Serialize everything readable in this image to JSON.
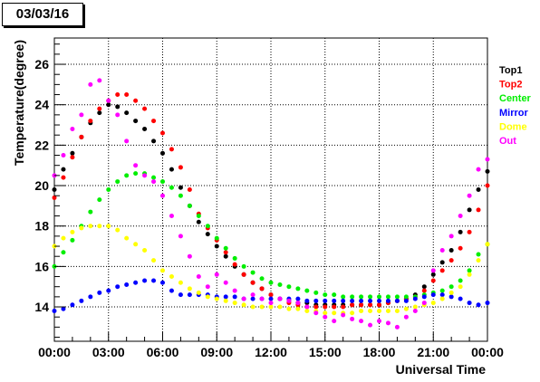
{
  "chart_data": {
    "type": "scatter",
    "title": "03/03/16",
    "xlabel": "Universal Time",
    "ylabel": "Temperature(degree)",
    "xlim": [
      0,
      24
    ],
    "ylim": [
      12.3,
      27.3
    ],
    "x_tick_values": [
      0,
      3,
      6,
      9,
      12,
      15,
      18,
      21,
      24
    ],
    "x_tick_labels": [
      "00:00",
      "03:00",
      "06:00",
      "09:00",
      "12:00",
      "15:00",
      "18:00",
      "21:00",
      "00:00"
    ],
    "y_tick_values": [
      14,
      16,
      18,
      20,
      22,
      24,
      26
    ],
    "y_tick_labels": [
      "14",
      "16",
      "18",
      "20",
      "22",
      "24",
      "26"
    ],
    "grid": true,
    "legend_position": "right",
    "series": [
      {
        "name": "Top1",
        "color": "#000000",
        "x": [
          0,
          0.5,
          1,
          1.5,
          2,
          2.5,
          3,
          3.5,
          4,
          4.5,
          5,
          5.5,
          6,
          6.5,
          7,
          7.5,
          8,
          8.5,
          9,
          9.5,
          10,
          10.5,
          11,
          11.5,
          12,
          12.5,
          13,
          13.5,
          14,
          14.5,
          15,
          15.5,
          16,
          16.5,
          17,
          17.5,
          18,
          18.5,
          19,
          19.5,
          20,
          20.5,
          21,
          21.5,
          22,
          22.5,
          23,
          23.5,
          24
        ],
        "y": [
          19.8,
          20.8,
          21.6,
          22.4,
          23.1,
          23.6,
          24.0,
          23.9,
          23.6,
          23.2,
          22.8,
          22.2,
          21.6,
          20.8,
          19.9,
          19.0,
          18.2,
          17.6,
          17.0,
          16.5,
          16.0,
          15.6,
          15.2,
          14.9,
          14.6,
          14.4,
          14.3,
          14.2,
          14.2,
          14.1,
          14.1,
          14.1,
          14.1,
          14.1,
          14.1,
          14.1,
          14.1,
          14.2,
          14.3,
          14.4,
          14.6,
          15.0,
          15.6,
          16.2,
          16.8,
          17.7,
          18.8,
          19.8,
          20.7
        ]
      },
      {
        "name": "Top2",
        "color": "#ff0000",
        "x": [
          0,
          0.5,
          1,
          1.5,
          2,
          2.5,
          3,
          3.5,
          4,
          4.5,
          5,
          5.5,
          6,
          6.5,
          7,
          7.5,
          8,
          8.5,
          9,
          9.5,
          10,
          10.5,
          11,
          11.5,
          12,
          12.5,
          13,
          13.5,
          14,
          14.5,
          15,
          15.5,
          16,
          16.5,
          17,
          17.5,
          18,
          18.5,
          19,
          19.5,
          20,
          20.5,
          21,
          21.5,
          22,
          22.5,
          23,
          23.5,
          24
        ],
        "y": [
          19.4,
          20.4,
          21.4,
          22.4,
          23.2,
          23.8,
          24.2,
          24.5,
          24.5,
          24.2,
          23.8,
          23.2,
          22.6,
          21.8,
          20.9,
          19.8,
          18.6,
          17.9,
          17.3,
          16.7,
          16.1,
          15.6,
          15.2,
          14.9,
          14.6,
          14.4,
          14.2,
          14.1,
          14.0,
          14.0,
          14.0,
          14.0,
          14.0,
          14.1,
          14.1,
          14.1,
          14.1,
          14.2,
          14.3,
          14.4,
          14.5,
          14.8,
          15.3,
          15.8,
          16.3,
          16.9,
          17.7,
          18.8,
          20.0
        ]
      },
      {
        "name": "Center",
        "color": "#00ee00",
        "x": [
          0,
          0.5,
          1,
          1.5,
          2,
          2.5,
          3,
          3.5,
          4,
          4.5,
          5,
          5.5,
          6,
          6.5,
          7,
          7.5,
          8,
          8.5,
          9,
          9.5,
          10,
          10.5,
          11,
          11.5,
          12,
          12.5,
          13,
          13.5,
          14,
          14.5,
          15,
          15.5,
          16,
          16.5,
          17,
          17.5,
          18,
          18.5,
          19,
          19.5,
          20,
          20.5,
          21,
          21.5,
          22,
          22.5,
          23,
          23.5,
          24
        ],
        "y": [
          16.0,
          16.7,
          17.3,
          18.0,
          18.7,
          19.3,
          19.8,
          20.2,
          20.5,
          20.6,
          20.6,
          20.4,
          20.2,
          19.9,
          19.5,
          19.0,
          18.5,
          18.0,
          17.4,
          16.9,
          16.4,
          16.0,
          15.7,
          15.4,
          15.2,
          15.1,
          15.0,
          14.9,
          14.8,
          14.7,
          14.6,
          14.6,
          14.5,
          14.5,
          14.5,
          14.5,
          14.5,
          14.5,
          14.5,
          14.5,
          14.5,
          14.6,
          14.7,
          14.8,
          15.0,
          15.3,
          15.8,
          16.6,
          17.1
        ]
      },
      {
        "name": "Mirror",
        "color": "#0000ff",
        "x": [
          0,
          0.5,
          1,
          1.5,
          2,
          2.5,
          3,
          3.5,
          4,
          4.5,
          5,
          5.5,
          6,
          6.5,
          7,
          7.5,
          8,
          8.5,
          9,
          9.5,
          10,
          10.5,
          11,
          11.5,
          12,
          12.5,
          13,
          13.5,
          14,
          14.5,
          15,
          15.5,
          16,
          16.5,
          17,
          17.5,
          18,
          18.5,
          19,
          19.5,
          20,
          20.5,
          21,
          21.5,
          22,
          22.5,
          23,
          23.5,
          24
        ],
        "y": [
          13.8,
          13.9,
          14.1,
          14.3,
          14.5,
          14.7,
          14.8,
          15.0,
          15.1,
          15.2,
          15.3,
          15.3,
          15.2,
          14.8,
          14.6,
          14.6,
          14.6,
          14.6,
          14.5,
          14.5,
          14.5,
          14.4,
          14.4,
          14.4,
          14.4,
          14.4,
          14.4,
          14.4,
          14.3,
          14.3,
          14.3,
          14.3,
          14.3,
          14.3,
          14.3,
          14.3,
          14.3,
          14.3,
          14.3,
          14.3,
          14.4,
          14.5,
          14.6,
          14.6,
          14.5,
          14.4,
          14.2,
          14.1,
          14.2
        ]
      },
      {
        "name": "Dome",
        "color": "#ffff00",
        "x": [
          0,
          0.5,
          1,
          1.5,
          2,
          2.5,
          3,
          3.5,
          4,
          4.5,
          5,
          5.5,
          6,
          6.5,
          7,
          7.5,
          8,
          8.5,
          9,
          9.5,
          10,
          10.5,
          11,
          11.5,
          12,
          12.5,
          13,
          13.5,
          14,
          14.5,
          15,
          15.5,
          16,
          16.5,
          17,
          17.5,
          18,
          18.5,
          19,
          19.5,
          20,
          20.5,
          21,
          21.5,
          22,
          22.5,
          23,
          23.5,
          24
        ],
        "y": [
          17.0,
          17.4,
          17.7,
          17.9,
          18.0,
          18.0,
          18.0,
          17.8,
          17.4,
          17.1,
          16.8,
          16.3,
          15.8,
          15.5,
          15.2,
          14.9,
          14.7,
          14.5,
          14.4,
          14.3,
          14.2,
          14.1,
          14.0,
          14.0,
          14.0,
          14.0,
          13.9,
          13.9,
          13.8,
          13.8,
          13.7,
          13.7,
          13.7,
          13.7,
          13.8,
          13.8,
          13.8,
          13.8,
          13.8,
          13.9,
          14.0,
          14.1,
          14.2,
          14.4,
          14.7,
          15.0,
          15.6,
          16.3,
          17.1
        ]
      },
      {
        "name": "Out",
        "color": "#ff00ff",
        "x": [
          0,
          0.5,
          1,
          1.5,
          2,
          2.5,
          3,
          3.5,
          4,
          4.5,
          5,
          5.5,
          6,
          6.5,
          7,
          7.5,
          8,
          8.5,
          9,
          9.5,
          10,
          10.5,
          11,
          11.5,
          12,
          12.5,
          13,
          13.5,
          14,
          14.5,
          15,
          15.5,
          16,
          16.5,
          17,
          17.5,
          18,
          18.5,
          19,
          19.5,
          20,
          20.5,
          21,
          21.5,
          22,
          22.5,
          23,
          23.5,
          24
        ],
        "y": [
          20.5,
          21.5,
          22.8,
          23.5,
          25.0,
          25.2,
          24.2,
          23.5,
          22.2,
          21.0,
          20.5,
          20.2,
          19.5,
          18.5,
          17.5,
          16.5,
          15.5,
          15.0,
          15.6,
          15.2,
          14.8,
          14.4,
          14.6,
          14.4,
          14.2,
          14.4,
          14.3,
          14.2,
          14.0,
          13.7,
          13.5,
          13.3,
          13.6,
          13.4,
          13.3,
          13.1,
          13.3,
          13.2,
          13.0,
          13.5,
          13.8,
          14.2,
          15.8,
          16.8,
          17.5,
          18.5,
          19.5,
          20.8,
          21.3
        ]
      }
    ]
  }
}
